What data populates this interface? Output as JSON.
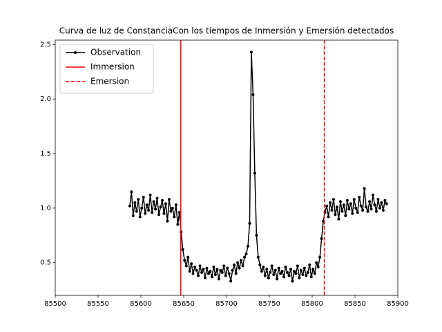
{
  "chart_data": {
    "type": "line",
    "title": "Curva de luz de ConstanciaCon los tiempos de Inmersión y Emersión detectados",
    "x": [
      85587,
      85589,
      85591,
      85593,
      85595,
      85597,
      85599,
      85601,
      85603,
      85605,
      85607,
      85609,
      85611,
      85613,
      85615,
      85617,
      85619,
      85621,
      85623,
      85625,
      85627,
      85629,
      85631,
      85633,
      85635,
      85637,
      85639,
      85641,
      85643,
      85645,
      85647,
      85649,
      85651,
      85653,
      85655,
      85657,
      85659,
      85661,
      85663,
      85665,
      85667,
      85669,
      85671,
      85673,
      85675,
      85677,
      85679,
      85681,
      85683,
      85685,
      85687,
      85689,
      85691,
      85693,
      85695,
      85697,
      85699,
      85701,
      85703,
      85705,
      85707,
      85709,
      85711,
      85713,
      85715,
      85717,
      85719,
      85721,
      85723,
      85725,
      85727,
      85729,
      85731,
      85733,
      85735,
      85737,
      85739,
      85741,
      85743,
      85745,
      85747,
      85749,
      85751,
      85753,
      85755,
      85757,
      85759,
      85761,
      85763,
      85765,
      85767,
      85769,
      85771,
      85773,
      85775,
      85777,
      85779,
      85781,
      85783,
      85785,
      85787,
      85789,
      85791,
      85793,
      85795,
      85797,
      85799,
      85801,
      85803,
      85805,
      85807,
      85809,
      85811,
      85813,
      85815,
      85817,
      85819,
      85821,
      85823,
      85825,
      85827,
      85829,
      85831,
      85833,
      85835,
      85837,
      85839,
      85841,
      85843,
      85845,
      85847,
      85849,
      85851,
      85853,
      85855,
      85857,
      85859,
      85861,
      85863,
      85865,
      85867,
      85869,
      85871,
      85873,
      85875,
      85877,
      85879,
      85881,
      85883,
      85885,
      85887
    ],
    "series": [
      {
        "name": "Observation",
        "color": "#000000",
        "values": [
          1.02,
          1.15,
          0.93,
          1.05,
          0.97,
          1.08,
          0.92,
          1.0,
          1.1,
          0.95,
          1.03,
          0.98,
          1.12,
          0.96,
          1.06,
          0.99,
          1.09,
          0.94,
          1.01,
          1.07,
          0.95,
          1.04,
          0.88,
          1.08,
          0.97,
          1.0,
          0.92,
          1.03,
          0.85,
          0.96,
          0.78,
          0.62,
          0.52,
          0.47,
          0.55,
          0.42,
          0.49,
          0.4,
          0.46,
          0.43,
          0.38,
          0.47,
          0.41,
          0.44,
          0.36,
          0.45,
          0.4,
          0.42,
          0.37,
          0.46,
          0.39,
          0.44,
          0.35,
          0.43,
          0.41,
          0.47,
          0.38,
          0.45,
          0.4,
          0.33,
          0.43,
          0.48,
          0.4,
          0.5,
          0.45,
          0.52,
          0.47,
          0.55,
          0.58,
          0.65,
          0.86,
          2.43,
          2.04,
          1.32,
          0.75,
          0.55,
          0.48,
          0.42,
          0.46,
          0.38,
          0.44,
          0.36,
          0.41,
          0.47,
          0.39,
          0.43,
          0.35,
          0.45,
          0.4,
          0.42,
          0.37,
          0.46,
          0.41,
          0.38,
          0.44,
          0.33,
          0.42,
          0.4,
          0.47,
          0.36,
          0.43,
          0.39,
          0.45,
          0.38,
          0.41,
          0.48,
          0.37,
          0.44,
          0.4,
          0.5,
          0.46,
          0.55,
          0.72,
          0.88,
          0.96,
          1.02,
          0.92,
          1.05,
          0.98,
          1.08,
          0.94,
          1.01,
          0.9,
          1.06,
          0.97,
          1.03,
          0.93,
          1.07,
          0.99,
          1.04,
          0.95,
          1.08,
          1.0,
          0.96,
          1.1,
          1.02,
          0.98,
          1.18,
          1.01,
          0.97,
          1.06,
          0.99,
          1.12,
          1.03,
          0.97,
          1.08,
          1.0,
          1.05,
          0.98,
          1.07,
          1.04
        ]
      }
    ],
    "vlines": [
      {
        "name": "Immersion",
        "color": "#ff0000",
        "x": 85646.6,
        "style": "solid"
      },
      {
        "name": "Emersion",
        "color": "#ff0000",
        "x": 85814.2,
        "style": "dashed"
      }
    ],
    "xlim": [
      85500,
      85900
    ],
    "xticks": [
      85500,
      85550,
      85600,
      85650,
      85700,
      85750,
      85800,
      85850,
      85900
    ],
    "ylim": [
      0.2,
      2.54
    ],
    "yticks": [
      0.5,
      {
        "value": 1,
        "label": "1.0"
      },
      1.5,
      {
        "value": 2,
        "label": "2.0"
      },
      2.5
    ],
    "grid": false,
    "legend": "upper left"
  }
}
